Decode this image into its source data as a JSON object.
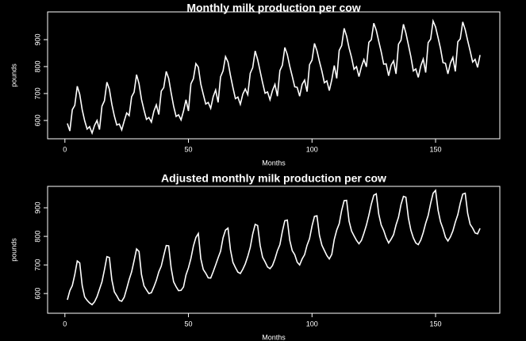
{
  "chart_data": [
    {
      "type": "line",
      "title": "Monthly milk production per cow",
      "x_label": "Months",
      "y_label": "pounds",
      "xlim": [
        -7,
        176
      ],
      "xticks": [
        0,
        50,
        100,
        150
      ],
      "ylim": [
        532,
        1003
      ],
      "yticks": [
        600,
        700,
        800,
        900
      ],
      "x": [
        1,
        2,
        3,
        4,
        5,
        6,
        7,
        8,
        9,
        10,
        11,
        12,
        13,
        14,
        15,
        16,
        17,
        18,
        19,
        20,
        21,
        22,
        23,
        24,
        25,
        26,
        27,
        28,
        29,
        30,
        31,
        32,
        33,
        34,
        35,
        36,
        37,
        38,
        39,
        40,
        41,
        42,
        43,
        44,
        45,
        46,
        47,
        48,
        49,
        50,
        51,
        52,
        53,
        54,
        55,
        56,
        57,
        58,
        59,
        60,
        61,
        62,
        63,
        64,
        65,
        66,
        67,
        68,
        69,
        70,
        71,
        72,
        73,
        74,
        75,
        76,
        77,
        78,
        79,
        80,
        81,
        82,
        83,
        84,
        85,
        86,
        87,
        88,
        89,
        90,
        91,
        92,
        93,
        94,
        95,
        96,
        97,
        98,
        99,
        100,
        101,
        102,
        103,
        104,
        105,
        106,
        107,
        108,
        109,
        110,
        111,
        112,
        113,
        114,
        115,
        116,
        117,
        118,
        119,
        120,
        121,
        122,
        123,
        124,
        125,
        126,
        127,
        128,
        129,
        130,
        131,
        132,
        133,
        134,
        135,
        136,
        137,
        138,
        139,
        140,
        141,
        142,
        143,
        144,
        145,
        146,
        147,
        148,
        149,
        150,
        151,
        152,
        153,
        154,
        155,
        156,
        157,
        158,
        159,
        160,
        161,
        162,
        163,
        164,
        165,
        166,
        167,
        168
      ],
      "series": [
        {
          "color": "#ffffff",
          "values": [
            589,
            561,
            640,
            656,
            727,
            697,
            640,
            599,
            568,
            577,
            553,
            582,
            600,
            566,
            653,
            673,
            742,
            716,
            660,
            617,
            583,
            587,
            565,
            598,
            628,
            618,
            688,
            705,
            770,
            736,
            678,
            639,
            604,
            611,
            594,
            634,
            658,
            622,
            709,
            722,
            782,
            756,
            702,
            653,
            615,
            621,
            602,
            635,
            677,
            635,
            736,
            755,
            811,
            798,
            735,
            697,
            661,
            667,
            645,
            688,
            713,
            667,
            762,
            784,
            837,
            817,
            767,
            722,
            681,
            687,
            660,
            698,
            717,
            696,
            775,
            796,
            858,
            826,
            783,
            740,
            701,
            706,
            677,
            711,
            734,
            690,
            785,
            805,
            871,
            845,
            801,
            764,
            725,
            723,
            690,
            734,
            750,
            707,
            807,
            824,
            886,
            859,
            819,
            783,
            740,
            747,
            711,
            751,
            804,
            756,
            860,
            878,
            942,
            913,
            869,
            834,
            790,
            800,
            763,
            800,
            826,
            799,
            890,
            900,
            961,
            935,
            894,
            855,
            809,
            810,
            766,
            805,
            821,
            773,
            883,
            898,
            957,
            924,
            881,
            837,
            784,
            791,
            760,
            802,
            828,
            778,
            889,
            902,
            969,
            947,
            908,
            867,
            815,
            812,
            773,
            813,
            834,
            782,
            892,
            903,
            966,
            937,
            896,
            858,
            817,
            827,
            797,
            843
          ]
        }
      ]
    },
    {
      "type": "line",
      "title": "Adjusted monthly milk production per cow",
      "x_label": "Months",
      "y_label": "pounds",
      "xlim": [
        -7,
        176
      ],
      "xticks": [
        0,
        50,
        100,
        150
      ],
      "ylim": [
        531,
        975
      ],
      "yticks": [
        600,
        700,
        800,
        900
      ],
      "x": [
        1,
        2,
        3,
        4,
        5,
        6,
        7,
        8,
        9,
        10,
        11,
        12,
        13,
        14,
        15,
        16,
        17,
        18,
        19,
        20,
        21,
        22,
        23,
        24,
        25,
        26,
        27,
        28,
        29,
        30,
        31,
        32,
        33,
        34,
        35,
        36,
        37,
        38,
        39,
        40,
        41,
        42,
        43,
        44,
        45,
        46,
        47,
        48,
        49,
        50,
        51,
        52,
        53,
        54,
        55,
        56,
        57,
        58,
        59,
        60,
        61,
        62,
        63,
        64,
        65,
        66,
        67,
        68,
        69,
        70,
        71,
        72,
        73,
        74,
        75,
        76,
        77,
        78,
        79,
        80,
        81,
        82,
        83,
        84,
        85,
        86,
        87,
        88,
        89,
        90,
        91,
        92,
        93,
        94,
        95,
        96,
        97,
        98,
        99,
        100,
        101,
        102,
        103,
        104,
        105,
        106,
        107,
        108,
        109,
        110,
        111,
        112,
        113,
        114,
        115,
        116,
        117,
        118,
        119,
        120,
        121,
        122,
        123,
        124,
        125,
        126,
        127,
        128,
        129,
        130,
        131,
        132,
        133,
        134,
        135,
        136,
        137,
        138,
        139,
        140,
        141,
        142,
        143,
        144,
        145,
        146,
        147,
        148,
        149,
        150,
        151,
        152,
        153,
        154,
        155,
        156,
        157,
        158,
        159,
        160,
        161,
        162,
        163,
        164,
        165,
        166,
        167,
        168
      ],
      "series": [
        {
          "color": "#ffffff",
          "values": [
            578,
            610,
            628,
            666,
            714,
            707,
            628,
            588,
            576,
            567,
            561,
            571,
            589,
            615,
            641,
            683,
            729,
            726,
            648,
            606,
            592,
            576,
            573,
            587,
            617,
            649,
            676,
            715,
            756,
            747,
            666,
            627,
            613,
            600,
            603,
            623,
            646,
            676,
            696,
            733,
            768,
            767,
            689,
            641,
            624,
            610,
            611,
            623,
            665,
            690,
            723,
            766,
            796,
            810,
            722,
            684,
            671,
            655,
            654,
            676,
            700,
            725,
            748,
            795,
            822,
            829,
            753,
            709,
            691,
            675,
            670,
            685,
            704,
            730,
            761,
            808,
            842,
            838,
            769,
            727,
            711,
            693,
            687,
            698,
            721,
            750,
            771,
            817,
            855,
            857,
            786,
            750,
            736,
            710,
            700,
            721,
            736,
            769,
            792,
            836,
            870,
            872,
            804,
            769,
            751,
            733,
            721,
            737,
            789,
            822,
            844,
            891,
            925,
            926,
            853,
            819,
            802,
            786,
            774,
            786,
            811,
            839,
            874,
            913,
            944,
            949,
            878,
            840,
            821,
            795,
            777,
            790,
            806,
            840,
            867,
            911,
            940,
            937,
            865,
            822,
            795,
            777,
            771,
            787,
            813,
            846,
            873,
            915,
            951,
            961,
            892,
            851,
            827,
            797,
            784,
            798,
            819,
            850,
            876,
            916,
            948,
            951,
            880,
            842,
            829,
            812,
            809,
            828
          ]
        }
      ]
    }
  ]
}
